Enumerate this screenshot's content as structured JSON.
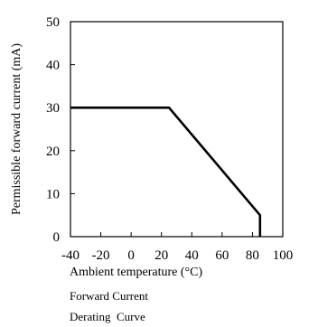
{
  "chart_data": {
    "type": "line",
    "xlabel": "Ambient temperature (°C)",
    "ylabel": "Permissible forward current (mA)",
    "xlim": [
      -40,
      100
    ],
    "ylim": [
      0,
      50
    ],
    "x_ticks": [
      -40,
      -20,
      0,
      20,
      40,
      60,
      80,
      100
    ],
    "y_ticks": [
      0,
      10,
      20,
      30,
      40,
      50
    ],
    "x_tick_labels": [
      "-40",
      "-20",
      "0",
      "20",
      "40",
      "60",
      "80",
      "100"
    ],
    "y_tick_labels": [
      "0",
      "10",
      "20",
      "30",
      "40",
      "50"
    ],
    "grid": false,
    "legend": "none",
    "caption_lines": [
      "Forward Current",
      "Derating  Curve"
    ],
    "line_color": "#000000",
    "series": [
      {
        "x": [
          -40,
          25,
          85,
          85
        ],
        "y": [
          30,
          30,
          5,
          0
        ]
      }
    ]
  }
}
